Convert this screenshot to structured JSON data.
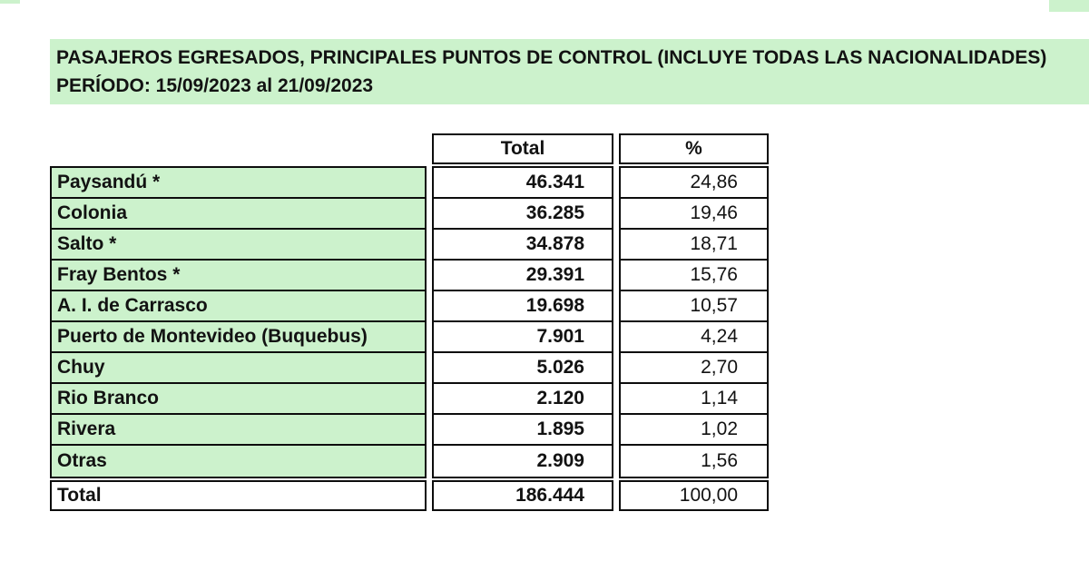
{
  "title": {
    "line1": "PASAJEROS EGRESADOS, PRINCIPALES PUNTOS DE CONTROL (INCLUYE TODAS LAS NACIONALIDADES)",
    "line2": "PERÍODO: 15/09/2023 al 21/09/2023"
  },
  "table": {
    "header": {
      "total_label": "Total",
      "percent_label": "%"
    },
    "rows": [
      {
        "label": "Paysandú *",
        "total": "46.341",
        "percent": "24,86"
      },
      {
        "label": "Colonia",
        "total": "36.285",
        "percent": "19,46"
      },
      {
        "label": "Salto *",
        "total": "34.878",
        "percent": "18,71"
      },
      {
        "label": "Fray Bentos *",
        "total": "29.391",
        "percent": "15,76"
      },
      {
        "label": "A. I. de Carrasco",
        "total": "19.698",
        "percent": "10,57"
      },
      {
        "label": "Puerto de Montevideo (Buquebus)",
        "total": "7.901",
        "percent": "4,24"
      },
      {
        "label": "Chuy",
        "total": "5.026",
        "percent": "2,70"
      },
      {
        "label": "Rio Branco",
        "total": "2.120",
        "percent": "1,14"
      },
      {
        "label": "Rivera",
        "total": "1.895",
        "percent": "1,02"
      },
      {
        "label": "Otras",
        "total": "2.909",
        "percent": "1,56"
      }
    ],
    "total_row": {
      "label": "Total",
      "total": "186.444",
      "percent": "100,00"
    }
  },
  "colors": {
    "highlight_green": "#ccf2cc",
    "border_black": "#0d0d0d",
    "text_black": "#121212",
    "page_background": "#ffffff"
  }
}
